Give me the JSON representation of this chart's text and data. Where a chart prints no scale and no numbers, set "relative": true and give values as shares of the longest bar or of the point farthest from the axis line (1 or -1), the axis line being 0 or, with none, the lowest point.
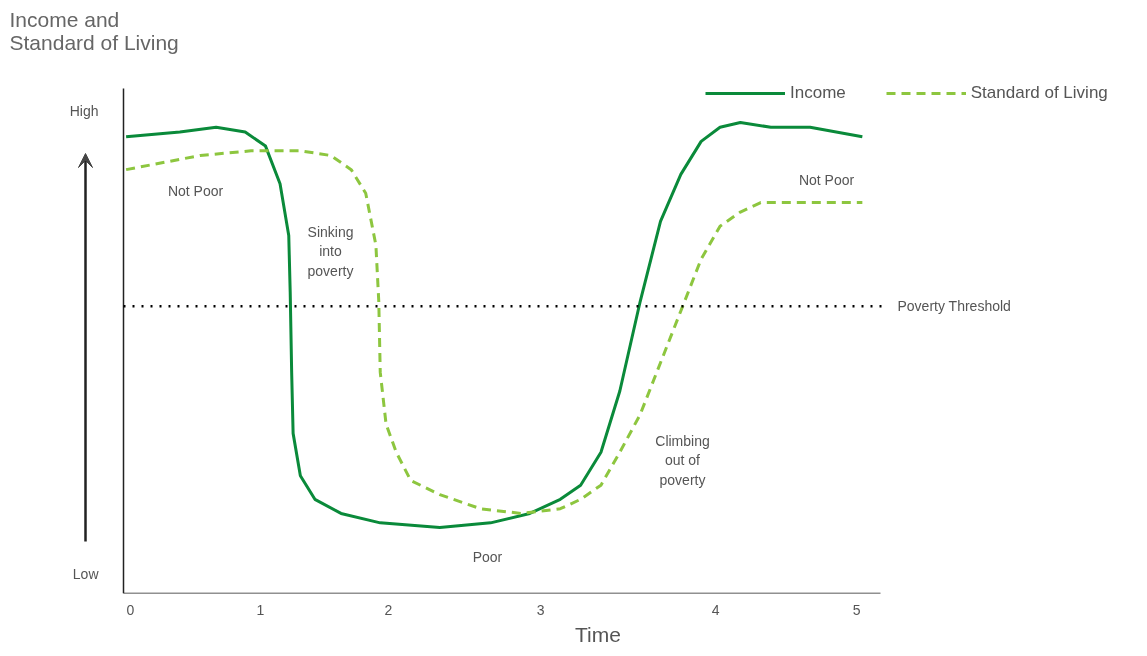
{
  "chart_data": {
    "type": "line",
    "title": "Income and\nStandard of Living",
    "xlabel": "Time",
    "relative": true,
    "xlim": [
      -0.048,
      5.165
    ],
    "xticks": [
      0,
      {
        "value": 0.895,
        "label": "1"
      },
      {
        "value": 1.777,
        "label": "2"
      },
      {
        "value": 2.824,
        "label": "3"
      },
      {
        "value": 4.029,
        "label": "4"
      },
      5
    ],
    "grid": false,
    "legend": "top right",
    "marker": "none",
    "series": [
      {
        "name": "Income",
        "color": "#0a8a3a",
        "line_style": "solid",
        "x": [
          -0.03,
          0.34,
          0.59,
          0.79,
          0.93,
          1.03,
          1.09,
          1.1,
          1.11,
          1.12,
          1.17,
          1.27,
          1.45,
          1.72,
          2.13,
          2.48,
          2.75,
          2.96,
          3.1,
          3.24,
          3.37,
          3.51,
          3.65,
          3.79,
          3.93,
          4.06,
          4.2,
          4.41,
          4.68,
          5.04
        ],
        "values": [
          0.97,
          0.98,
          0.99,
          0.98,
          0.95,
          0.87,
          0.76,
          0.64,
          0.47,
          0.34,
          0.25,
          0.2,
          0.17,
          0.15,
          0.14,
          0.15,
          0.17,
          0.2,
          0.23,
          0.3,
          0.43,
          0.62,
          0.79,
          0.89,
          0.96,
          0.99,
          1.0,
          0.99,
          0.99,
          0.97
        ]
      },
      {
        "name": "Standard of Living",
        "color": "#8dc63f",
        "line_style": "dashed",
        "x": [
          -0.03,
          0.48,
          0.83,
          1.17,
          1.38,
          1.52,
          1.62,
          1.69,
          1.71,
          1.72,
          1.76,
          1.83,
          1.93,
          2.13,
          2.41,
          2.69,
          2.96,
          3.1,
          3.24,
          3.37,
          3.51,
          3.65,
          3.79,
          3.93,
          4.06,
          4.2,
          4.34,
          4.61,
          5.04
        ],
        "values": [
          0.9,
          0.93,
          0.94,
          0.94,
          0.93,
          0.9,
          0.85,
          0.74,
          0.62,
          0.47,
          0.36,
          0.3,
          0.24,
          0.21,
          0.18,
          0.17,
          0.18,
          0.2,
          0.23,
          0.3,
          0.38,
          0.49,
          0.6,
          0.71,
          0.78,
          0.81,
          0.83,
          0.83,
          0.83
        ]
      }
    ],
    "ref_lines": [
      {
        "axis": "y",
        "value": 0.61,
        "label": "Poverty Threshold",
        "color": "#000000",
        "line_style": "dotted"
      }
    ],
    "annotations": [
      "High",
      "Low",
      "Not Poor",
      "Sinking\ninto\npoverty",
      "Poor",
      "Climbing\nout of\npoverty",
      "Not Poor"
    ]
  }
}
